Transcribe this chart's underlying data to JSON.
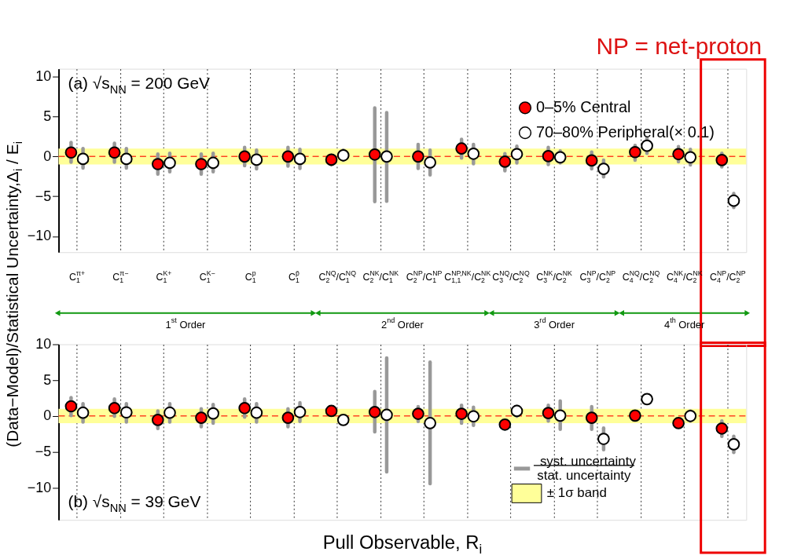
{
  "chart_data": [
    {
      "type": "scatter",
      "categories": [
        "C$_{1}$$^{π+}$",
        "C$_{1}$$^{π−}$",
        "C$_{1}$$^{K+}$",
        "C$_{1}$$^{K−}$",
        "C$_{1}$$^{p}$",
        "C$_{1}$$^{p̄}$",
        "C$_{2}$$^{NQ}$/C$_{1}$$^{NQ}$",
        "C$_{2}$$^{NK}$/C$_{1}$$^{NK}$",
        "C$_{2}$$^{NP}$/C$_{1}$$^{NP}$",
        "C$_{1,1}$$^{NP,NK}$/C$_{2}$$^{NK}$",
        "C$_{3}$$^{NQ}$/C$_{2}$$^{NQ}$",
        "C$_{3}$$^{NK}$/C$_{2}$$^{NK}$",
        "C$_{3}$$^{NP}$/C$_{2}$$^{NP}$",
        "C$_{4}$$^{NQ}$/C$_{2}$$^{NQ}$",
        "C$_{4}$$^{NK}$/C$_{2}$$^{NK}$",
        "C$_{4}$$^{NP}$/C$_{2}$$^{NP}$"
      ],
      "ylabel": "(Data−Model)/Statistical Uncertainty,Δ$_{i}$ / E$_{i}$",
      "ylim": [
        -12,
        11
      ],
      "yticks": [
        -10,
        -5,
        0,
        5,
        10
      ],
      "grid": "x",
      "legend": "top right",
      "marker": "circle",
      "series": [
        {
          "name": "0–5% Central",
          "color": "#ff0000",
          "values": [
            0.5,
            0.5,
            -0.95,
            -0.95,
            0.0,
            0.0,
            -0.4,
            0.25,
            0.0,
            1.0,
            -0.65,
            0.05,
            -0.5,
            0.55,
            0.3,
            -0.45
          ],
          "errors": [
            [
              -0.7,
              1.75
            ],
            [
              -0.7,
              1.65
            ],
            [
              -2.2,
              0.3
            ],
            [
              -2.2,
              0.3
            ],
            [
              -1.15,
              1.15
            ],
            [
              -1.2,
              1.15
            ],
            [
              -1.05,
              0.15
            ],
            [
              -5.65,
              6.1
            ],
            [
              -1.5,
              1.5
            ],
            [
              -0.2,
              2.15
            ],
            [
              -1.8,
              0.35
            ],
            [
              -1.0,
              1.15
            ],
            [
              -1.55,
              0.55
            ],
            [
              -0.45,
              1.4
            ],
            [
              -0.65,
              1.25
            ],
            [
              -1.3,
              0.4
            ]
          ]
        },
        {
          "name": "70–80% Peripheral(× 0.1)",
          "color": "#ffffff",
          "values": [
            -0.3,
            -0.3,
            -0.8,
            -0.8,
            -0.4,
            -0.3,
            0.15,
            0.0,
            -0.75,
            0.35,
            0.3,
            -0.1,
            -1.55,
            1.35,
            -0.1,
            -5.55
          ],
          "errors": [
            [
              -1.45,
              1.0
            ],
            [
              -1.45,
              1.0
            ],
            [
              -1.9,
              0.4
            ],
            [
              -1.9,
              0.4
            ],
            [
              -1.55,
              0.8
            ],
            [
              -1.5,
              0.9
            ],
            [
              -0.45,
              0.8
            ],
            [
              -5.6,
              5.5
            ],
            [
              -2.3,
              0.8
            ],
            [
              -0.9,
              1.5
            ],
            [
              -0.8,
              1.3
            ],
            [
              -0.8,
              0.7
            ],
            [
              -2.55,
              -0.45
            ],
            [
              0.4,
              2.35
            ],
            [
              -1.05,
              0.9
            ],
            [
              -6.4,
              -4.65
            ]
          ]
        }
      ],
      "bands": [
        {
          "axis": "y",
          "from": -1,
          "to": 1,
          "color": "#ffff99"
        }
      ],
      "ref_lines": [
        {
          "axis": "y",
          "value": 0,
          "color": "#ff4422",
          "line_style": "dashed"
        }
      ],
      "annotations": [
        "(a) √s$_{NN}$ = 200 GeV",
        "1$^{st}$ Order",
        "2$^{nd}$ Order",
        "3$^{rd}$ Order",
        "4$^{th}$ Order",
        "NP = net-proton"
      ]
    },
    {
      "type": "scatter",
      "categories": [
        "C$_{1}$$^{π+}$",
        "C$_{1}$$^{π−}$",
        "C$_{1}$$^{K+}$",
        "C$_{1}$$^{K−}$",
        "C$_{1}$$^{p}$",
        "C$_{1}$$^{p̄}$",
        "C$_{2}$$^{NQ}$/C$_{1}$$^{NQ}$",
        "C$_{2}$$^{NK}$/C$_{1}$$^{NK}$",
        "C$_{2}$$^{NP}$/C$_{1}$$^{NP}$",
        "C$_{1,1}$$^{NP,NK}$/C$_{2}$$^{NK}$",
        "C$_{3}$$^{NQ}$/C$_{2}$$^{NQ}$",
        "C$_{3}$$^{NK}$/C$_{2}$$^{NK}$",
        "C$_{3}$$^{NP}$/C$_{2}$$^{NP}$",
        "C$_{4}$$^{NQ}$/C$_{2}$$^{NQ}$",
        "C$_{4}$$^{NK}$/C$_{2}$$^{NK}$",
        "C$_{4}$$^{NP}$/C$_{2}$$^{NP}$"
      ],
      "xlabel": "Pull Observable, R$_{i}$",
      "tick_labels": "y",
      "ylim": [
        -14.5,
        10
      ],
      "yticks": [
        -10,
        -5,
        0,
        5,
        10
      ],
      "grid": "x",
      "marker": "circle",
      "series": [
        {
          "color": "#ff0000",
          "values": [
            1.35,
            1.1,
            -0.55,
            -0.25,
            1.1,
            -0.25,
            0.7,
            0.55,
            0.3,
            0.3,
            -1.2,
            0.4,
            -0.25,
            0.05,
            -1.0,
            -1.75
          ],
          "errors": [
            [
              0.05,
              2.55
            ],
            [
              -0.05,
              2.35
            ],
            [
              -1.75,
              0.7
            ],
            [
              -1.5,
              1.0
            ],
            [
              -0.15,
              2.35
            ],
            [
              -1.5,
              1.0
            ],
            [
              0.15,
              1.2
            ],
            [
              -2.2,
              3.4
            ],
            [
              -0.75,
              1.3
            ],
            [
              -1.0,
              1.5
            ],
            [
              -1.85,
              -0.7
            ],
            [
              -0.7,
              1.5
            ],
            [
              -1.85,
              1.3
            ],
            [
              -0.4,
              0.5
            ],
            [
              -1.5,
              -0.5
            ],
            [
              -2.85,
              -0.7
            ]
          ]
        },
        {
          "color": "#ffffff",
          "values": [
            0.45,
            0.5,
            0.45,
            0.35,
            0.45,
            0.55,
            -0.55,
            0.15,
            -1.0,
            -0.05,
            0.7,
            0.05,
            -3.2,
            2.35,
            0.0,
            -3.95
          ],
          "errors": [
            [
              -0.85,
              1.7
            ],
            [
              -0.85,
              1.7
            ],
            [
              -0.85,
              1.7
            ],
            [
              -1.0,
              1.6
            ],
            [
              -0.85,
              1.7
            ],
            [
              -0.75,
              1.85
            ],
            [
              -1.0,
              -0.15
            ],
            [
              -7.8,
              8.1
            ],
            [
              -9.45,
              7.5
            ],
            [
              -1.3,
              1.2
            ],
            [
              -0.05,
              1.35
            ],
            [
              -1.85,
              2.1
            ],
            [
              -4.7,
              -1.7
            ],
            [
              1.85,
              2.85
            ],
            [
              -0.7,
              0.7
            ],
            [
              -5.1,
              -2.85
            ]
          ]
        }
      ],
      "bands": [
        {
          "axis": "y",
          "from": -1,
          "to": 1,
          "color": "#ffff99",
          "label": "± 1σ band"
        }
      ],
      "ref_lines": [
        {
          "axis": "y",
          "value": 0,
          "color": "#ff4422",
          "line_style": "dashed"
        }
      ],
      "annotations": [
        "(b) √s$_{NN}$ = 39 GeV",
        "syst. uncertainty",
        "stat. uncertainty"
      ]
    }
  ]
}
